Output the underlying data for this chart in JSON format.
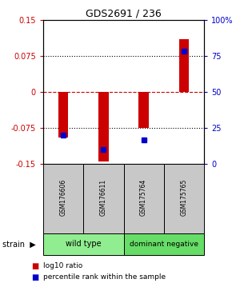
{
  "title": "GDS2691 / 236",
  "samples": [
    "GSM176606",
    "GSM176611",
    "GSM175764",
    "GSM175765"
  ],
  "log10_ratios": [
    -0.095,
    -0.145,
    -0.075,
    0.11
  ],
  "percentile_ranks": [
    20,
    10,
    17,
    78
  ],
  "ylim": [
    -0.15,
    0.15
  ],
  "yticks_left": [
    -0.15,
    -0.075,
    0,
    0.075,
    0.15
  ],
  "ytick_labels_left": [
    "-0.15",
    "-0.075",
    "0",
    "0.075",
    "0.15"
  ],
  "ytick_labels_right": [
    "0",
    "25",
    "50",
    "75",
    "100%"
  ],
  "group_colors": [
    "#90ee90",
    "#66dd66"
  ],
  "bar_color_red": "#cc0000",
  "bar_color_blue": "#0000cc",
  "zero_line_color": "#cc0000",
  "dotted_line_color": "#000000",
  "bg_color": "#ffffff",
  "sample_box_color": "#c8c8c8",
  "bar_width": 0.25,
  "legend_red_label": "log10 ratio",
  "legend_blue_label": "percentile rank within the sample",
  "strain_label": "strain"
}
